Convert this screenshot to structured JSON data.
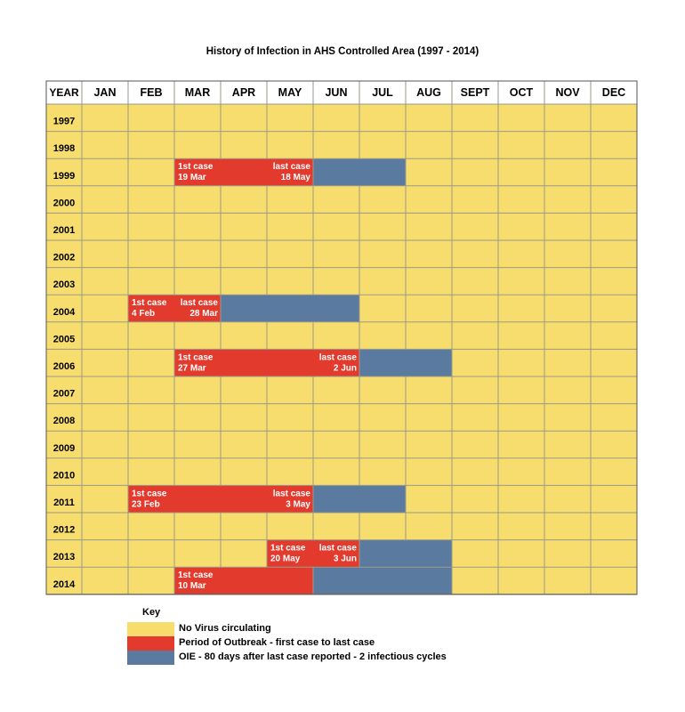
{
  "title": "History of Infection in AHS Controlled Area (1997 - 2014)",
  "colors": {
    "none": "#f6dd6e",
    "outbreak": "#e23b2e",
    "oie": "#5a7b9f",
    "grid": "#9a9a8a"
  },
  "chart_data": {
    "type": "table",
    "title": "History of Infection in AHS Controlled Area (1997 - 2014)",
    "header_label": "YEAR",
    "months": [
      "JAN",
      "FEB",
      "MAR",
      "APR",
      "MAY",
      "JUN",
      "JUL",
      "AUG",
      "SEPT",
      "OCT",
      "NOV",
      "DEC"
    ],
    "years": [
      "1997",
      "1998",
      "1999",
      "2000",
      "2001",
      "2002",
      "2003",
      "2004",
      "2005",
      "2006",
      "2007",
      "2008",
      "2009",
      "2010",
      "2011",
      "2012",
      "2013",
      "2014"
    ],
    "events": [
      {
        "year": "1999",
        "outbreak": [
          "MAR",
          "APR",
          "MAY"
        ],
        "oie": [
          "JUN",
          "JUL"
        ],
        "labels": [
          {
            "month": "MAR",
            "align": "left",
            "lines": [
              "1st case",
              "19 Mar"
            ]
          },
          {
            "month": "MAY",
            "align": "right",
            "lines": [
              "last case",
              "18 May"
            ]
          }
        ]
      },
      {
        "year": "2004",
        "outbreak": [
          "FEB",
          "MAR"
        ],
        "oie": [
          "APR",
          "MAY",
          "JUN"
        ],
        "labels": [
          {
            "month": "FEB",
            "align": "left",
            "lines": [
              "1st case",
              "4 Feb"
            ]
          },
          {
            "month": "MAR",
            "align": "right",
            "lines": [
              "last case",
              "28 Mar"
            ]
          }
        ]
      },
      {
        "year": "2006",
        "outbreak": [
          "MAR",
          "APR",
          "MAY",
          "JUN"
        ],
        "oie": [
          "JUL",
          "AUG"
        ],
        "labels": [
          {
            "month": "MAR",
            "align": "left",
            "lines": [
              "1st case",
              "27 Mar"
            ]
          },
          {
            "month": "JUN",
            "align": "right",
            "lines": [
              "last case",
              "2 Jun"
            ]
          }
        ]
      },
      {
        "year": "2011",
        "outbreak": [
          "FEB",
          "MAR",
          "APR",
          "MAY"
        ],
        "oie": [
          "JUN",
          "JUL"
        ],
        "labels": [
          {
            "month": "FEB",
            "align": "left",
            "lines": [
              "1st case",
              "23 Feb"
            ]
          },
          {
            "month": "MAY",
            "align": "right",
            "lines": [
              "last case",
              "3 May"
            ]
          }
        ]
      },
      {
        "year": "2013",
        "outbreak": [
          "MAY",
          "JUN"
        ],
        "oie": [
          "JUL",
          "AUG"
        ],
        "labels": [
          {
            "month": "MAY",
            "align": "left",
            "lines": [
              "1st case",
              "20 May"
            ]
          },
          {
            "month": "JUN",
            "align": "right",
            "lines": [
              "last case",
              "3 Jun"
            ]
          }
        ]
      },
      {
        "year": "2014",
        "outbreak": [
          "MAR",
          "APR",
          "MAY"
        ],
        "oie": [
          "JUN",
          "JUL",
          "AUG"
        ],
        "labels": [
          {
            "month": "MAR",
            "align": "left",
            "lines": [
              "1st case",
              "10 Mar"
            ]
          }
        ]
      }
    ]
  },
  "key": {
    "title": "Key",
    "items": [
      {
        "status": "none",
        "label": "No Virus circulating"
      },
      {
        "status": "outbreak",
        "label": "Period of Outbreak - first case to last case"
      },
      {
        "status": "oie",
        "label": "OIE - 80 days after last case reported - 2 infectious cycles"
      }
    ]
  }
}
